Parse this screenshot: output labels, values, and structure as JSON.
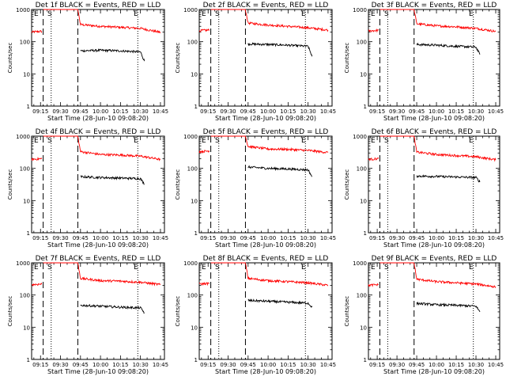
{
  "chart_data": [
    {
      "type": "line",
      "title": "Det 1f BLACK = Events, RED = LLD",
      "xlabel": "Start Time (28-Jun-10 09:08:20)",
      "ylabel": "Counts/sec",
      "yscale": "log",
      "ylim": [
        1,
        1000
      ],
      "xlim": [
        "09:08:20",
        "10:48"
      ],
      "xticks": [
        "09:15",
        "09:30",
        "09:45",
        "10:00",
        "10:15",
        "10:30",
        "10:45"
      ],
      "yticks": [
        "1",
        "10",
        "100",
        "1000"
      ],
      "grid": false,
      "annotations": [
        "E",
        "S",
        "E"
      ],
      "vlines": {
        "dashed": [
          "09:17",
          "09:43"
        ],
        "dotted": [
          "09:23",
          "10:28"
        ]
      },
      "series": [
        {
          "color": "#ff0000",
          "segments": [
            {
              "x": [
                "09:08:20",
                "09:16"
              ],
              "y": [
                200,
                210
              ]
            },
            {
              "x": [
                "09:17",
                "09:18",
                "09:43",
                "09:45",
                "10:00",
                "10:15",
                "10:30",
                "10:45"
              ],
              "y": [
                1000,
                1000,
                1000,
                340,
                300,
                280,
                260,
                195
              ]
            }
          ]
        },
        {
          "color": "#000000",
          "segments": [
            {
              "x": [
                "09:45",
                "10:00",
                "10:15",
                "10:30",
                "10:33"
              ],
              "y": [
                52,
                54,
                52,
                48,
                25
              ]
            }
          ]
        }
      ]
    },
    {
      "type": "line",
      "title": "Det 2f BLACK = Events, RED = LLD",
      "xlabel": "Start Time (28-Jun-10 09:08:20)",
      "ylabel": "Counts/sec",
      "yscale": "log",
      "ylim": [
        1,
        1000
      ],
      "xlim": [
        "09:08:20",
        "10:48"
      ],
      "xticks": [
        "09:15",
        "09:30",
        "09:45",
        "10:00",
        "10:15",
        "10:30",
        "10:45"
      ],
      "yticks": [
        "1",
        "10",
        "100",
        "1000"
      ],
      "grid": false,
      "annotations": [
        "E",
        "S",
        "E"
      ],
      "vlines": {
        "dashed": [
          "09:17",
          "09:43"
        ],
        "dotted": [
          "09:23",
          "10:28"
        ]
      },
      "series": [
        {
          "color": "#ff0000",
          "segments": [
            {
              "x": [
                "09:08:20",
                "09:16"
              ],
              "y": [
                220,
                230
              ]
            },
            {
              "x": [
                "09:17",
                "09:18",
                "09:43",
                "09:45",
                "10:00",
                "10:15",
                "10:30",
                "10:45"
              ],
              "y": [
                1000,
                1000,
                1000,
                380,
                330,
                300,
                270,
                230
              ]
            }
          ]
        },
        {
          "color": "#000000",
          "segments": [
            {
              "x": [
                "09:45",
                "10:00",
                "10:15",
                "10:30",
                "10:33"
              ],
              "y": [
                85,
                82,
                78,
                72,
                35
              ]
            }
          ]
        }
      ]
    },
    {
      "type": "line",
      "title": "Det 3f BLACK = Events, RED = LLD",
      "xlabel": "Start Time (28-Jun-10 09:08:20)",
      "ylabel": "Counts/sec",
      "yscale": "log",
      "ylim": [
        1,
        1000
      ],
      "xlim": [
        "09:08:20",
        "10:48"
      ],
      "xticks": [
        "09:15",
        "09:30",
        "09:45",
        "10:00",
        "10:15",
        "10:30",
        "10:45"
      ],
      "yticks": [
        "1",
        "10",
        "100",
        "1000"
      ],
      "grid": false,
      "annotations": [
        "E",
        "S",
        "E"
      ],
      "vlines": {
        "dashed": [
          "09:17",
          "09:43"
        ],
        "dotted": [
          "09:23",
          "10:28"
        ]
      },
      "series": [
        {
          "color": "#ff0000",
          "segments": [
            {
              "x": [
                "09:08:20",
                "09:16"
              ],
              "y": [
                215,
                225
              ]
            },
            {
              "x": [
                "09:17",
                "09:18",
                "09:43",
                "09:45",
                "10:00",
                "10:15",
                "10:30",
                "10:45"
              ],
              "y": [
                1000,
                1000,
                1000,
                360,
                310,
                290,
                260,
                210
              ]
            }
          ]
        },
        {
          "color": "#000000",
          "segments": [
            {
              "x": [
                "09:45",
                "10:00",
                "10:15",
                "10:30",
                "10:33"
              ],
              "y": [
                82,
                78,
                72,
                68,
                40
              ]
            }
          ]
        }
      ]
    },
    {
      "type": "line",
      "title": "Det 4f BLACK = Events, RED = LLD",
      "xlabel": "Start Time (28-Jun-10 09:08:20)",
      "ylabel": "Counts/sec",
      "yscale": "log",
      "ylim": [
        1,
        1000
      ],
      "xlim": [
        "09:08:20",
        "10:48"
      ],
      "xticks": [
        "09:15",
        "09:30",
        "09:45",
        "10:00",
        "10:15",
        "10:30",
        "10:45"
      ],
      "yticks": [
        "1",
        "10",
        "100",
        "1000"
      ],
      "grid": false,
      "annotations": [
        "E",
        "S",
        "E"
      ],
      "vlines": {
        "dashed": [
          "09:17",
          "09:43"
        ],
        "dotted": [
          "09:23",
          "10:28"
        ]
      },
      "series": [
        {
          "color": "#ff0000",
          "segments": [
            {
              "x": [
                "09:08:20",
                "09:16"
              ],
              "y": [
                190,
                200
              ]
            },
            {
              "x": [
                "09:17",
                "09:18",
                "09:43",
                "09:45",
                "10:00",
                "10:15",
                "10:30",
                "10:45"
              ],
              "y": [
                1000,
                1000,
                1000,
                330,
                270,
                260,
                240,
                190
              ]
            }
          ]
        },
        {
          "color": "#000000",
          "segments": [
            {
              "x": [
                "09:45",
                "10:00",
                "10:15",
                "10:30",
                "10:33"
              ],
              "y": [
                55,
                52,
                50,
                48,
                32
              ]
            }
          ]
        }
      ]
    },
    {
      "type": "line",
      "title": "Det 5f BLACK = Events, RED = LLD",
      "xlabel": "Start Time (28-Jun-10 09:08:20)",
      "ylabel": "Counts/sec",
      "yscale": "log",
      "ylim": [
        1,
        1000
      ],
      "xlim": [
        "09:08:20",
        "10:48"
      ],
      "xticks": [
        "09:15",
        "09:30",
        "09:45",
        "10:00",
        "10:15",
        "10:30",
        "10:45"
      ],
      "yticks": [
        "1",
        "10",
        "100",
        "1000"
      ],
      "grid": false,
      "annotations": [
        "E",
        "S",
        "E"
      ],
      "vlines": {
        "dashed": [
          "09:17",
          "09:43"
        ],
        "dotted": [
          "09:23",
          "10:28"
        ]
      },
      "series": [
        {
          "color": "#ff0000",
          "segments": [
            {
              "x": [
                "09:08:20",
                "09:16"
              ],
              "y": [
                330,
                350
              ]
            },
            {
              "x": [
                "09:17",
                "09:18",
                "09:43",
                "09:45",
                "10:00",
                "10:15",
                "10:30",
                "10:45"
              ],
              "y": [
                1000,
                1000,
                1000,
                480,
                400,
                390,
                360,
                310
              ]
            }
          ]
        },
        {
          "color": "#000000",
          "segments": [
            {
              "x": [
                "09:45",
                "10:00",
                "10:15",
                "10:30",
                "10:33"
              ],
              "y": [
                110,
                100,
                96,
                90,
                55
              ]
            }
          ]
        }
      ]
    },
    {
      "type": "line",
      "title": "Det 6f BLACK = Events, RED = LLD",
      "xlabel": "Start Time (28-Jun-10 09:08:20)",
      "ylabel": "Counts/sec",
      "yscale": "log",
      "ylim": [
        1,
        1000
      ],
      "xlim": [
        "09:08:20",
        "10:48"
      ],
      "xticks": [
        "09:15",
        "09:30",
        "09:45",
        "10:00",
        "10:15",
        "10:30",
        "10:45"
      ],
      "yticks": [
        "1",
        "10",
        "100",
        "1000"
      ],
      "grid": false,
      "annotations": [
        "E",
        "S",
        "E"
      ],
      "vlines": {
        "dashed": [
          "09:17",
          "09:43"
        ],
        "dotted": [
          "09:23",
          "10:28"
        ]
      },
      "series": [
        {
          "color": "#ff0000",
          "segments": [
            {
              "x": [
                "09:08:20",
                "09:16"
              ],
              "y": [
                190,
                200
              ]
            },
            {
              "x": [
                "09:17",
                "09:18",
                "09:43",
                "09:45",
                "10:00",
                "10:15",
                "10:30",
                "10:45"
              ],
              "y": [
                1000,
                1000,
                1000,
                320,
                270,
                250,
                230,
                185
              ]
            }
          ]
        },
        {
          "color": "#000000",
          "segments": [
            {
              "x": [
                "09:45",
                "10:00",
                "10:15",
                "10:30",
                "10:33"
              ],
              "y": [
                58,
                56,
                54,
                52,
                38
              ]
            }
          ]
        }
      ]
    },
    {
      "type": "line",
      "title": "Det 7f BLACK = Events, RED = LLD",
      "xlabel": "Start Time (28-Jun-10 09:08:20)",
      "ylabel": "Counts/sec",
      "yscale": "log",
      "ylim": [
        1,
        1000
      ],
      "xlim": [
        "09:08:20",
        "10:48"
      ],
      "xticks": [
        "09:15",
        "09:30",
        "09:45",
        "10:00",
        "10:15",
        "10:30",
        "10:45"
      ],
      "yticks": [
        "1",
        "10",
        "100",
        "1000"
      ],
      "grid": false,
      "annotations": [
        "E",
        "S",
        "E"
      ],
      "vlines": {
        "dashed": [
          "09:17",
          "09:43"
        ],
        "dotted": [
          "09:23",
          "10:28"
        ]
      },
      "series": [
        {
          "color": "#ff0000",
          "segments": [
            {
              "x": [
                "09:08:20",
                "09:16"
              ],
              "y": [
                210,
                220
              ]
            },
            {
              "x": [
                "09:17",
                "09:18",
                "09:43",
                "09:45",
                "10:00",
                "10:15",
                "10:30",
                "10:45"
              ],
              "y": [
                1000,
                1000,
                1000,
                330,
                280,
                270,
                250,
                210
              ]
            }
          ]
        },
        {
          "color": "#000000",
          "segments": [
            {
              "x": [
                "09:45",
                "10:00",
                "10:15",
                "10:30",
                "10:33"
              ],
              "y": [
                48,
                45,
                42,
                40,
                28
              ]
            }
          ]
        }
      ]
    },
    {
      "type": "line",
      "title": "Det 8f BLACK = Events, RED = LLD",
      "xlabel": "Start Time (28-Jun-10 09:08:20)",
      "ylabel": "Counts/sec",
      "yscale": "log",
      "ylim": [
        1,
        1000
      ],
      "xlim": [
        "09:08:20",
        "10:48"
      ],
      "xticks": [
        "09:15",
        "09:30",
        "09:45",
        "10:00",
        "10:15",
        "10:30",
        "10:45"
      ],
      "yticks": [
        "1",
        "10",
        "100",
        "1000"
      ],
      "grid": false,
      "annotations": [
        "E",
        "S",
        "E"
      ],
      "vlines": {
        "dashed": [
          "09:17",
          "09:43"
        ],
        "dotted": [
          "09:23",
          "10:28"
        ]
      },
      "series": [
        {
          "color": "#ff0000",
          "segments": [
            {
              "x": [
                "09:08:20",
                "09:16"
              ],
              "y": [
                220,
                230
              ]
            },
            {
              "x": [
                "09:17",
                "09:18",
                "09:43",
                "09:45",
                "10:00",
                "10:15",
                "10:30",
                "10:45"
              ],
              "y": [
                1000,
                1000,
                1000,
                330,
                280,
                260,
                240,
                200
              ]
            }
          ]
        },
        {
          "color": "#000000",
          "segments": [
            {
              "x": [
                "09:45",
                "10:00",
                "10:15",
                "10:30",
                "10:33"
              ],
              "y": [
                68,
                64,
                60,
                56,
                42
              ]
            }
          ]
        }
      ]
    },
    {
      "type": "line",
      "title": "Det 9f BLACK = Events, RED = LLD",
      "xlabel": "Start Time (28-Jun-10 09:08:20)",
      "ylabel": "Counts/sec",
      "yscale": "log",
      "ylim": [
        1,
        1000
      ],
      "xlim": [
        "09:08:20",
        "10:48"
      ],
      "xticks": [
        "09:15",
        "09:30",
        "09:45",
        "10:00",
        "10:15",
        "10:30",
        "10:45"
      ],
      "yticks": [
        "1",
        "10",
        "100",
        "1000"
      ],
      "grid": false,
      "annotations": [
        "E",
        "S",
        "E"
      ],
      "vlines": {
        "dashed": [
          "09:17",
          "09:43"
        ],
        "dotted": [
          "09:23",
          "10:28"
        ]
      },
      "series": [
        {
          "color": "#ff0000",
          "segments": [
            {
              "x": [
                "09:08:20",
                "09:16"
              ],
              "y": [
                200,
                210
              ]
            },
            {
              "x": [
                "09:17",
                "09:18",
                "09:43",
                "09:45",
                "10:00",
                "10:15",
                "10:30",
                "10:45"
              ],
              "y": [
                1000,
                1000,
                1000,
                310,
                260,
                240,
                220,
                180
              ]
            }
          ]
        },
        {
          "color": "#000000",
          "segments": [
            {
              "x": [
                "09:45",
                "10:00",
                "10:15",
                "10:30",
                "10:33"
              ],
              "y": [
                55,
                50,
                48,
                45,
                30
              ]
            }
          ]
        }
      ]
    }
  ]
}
